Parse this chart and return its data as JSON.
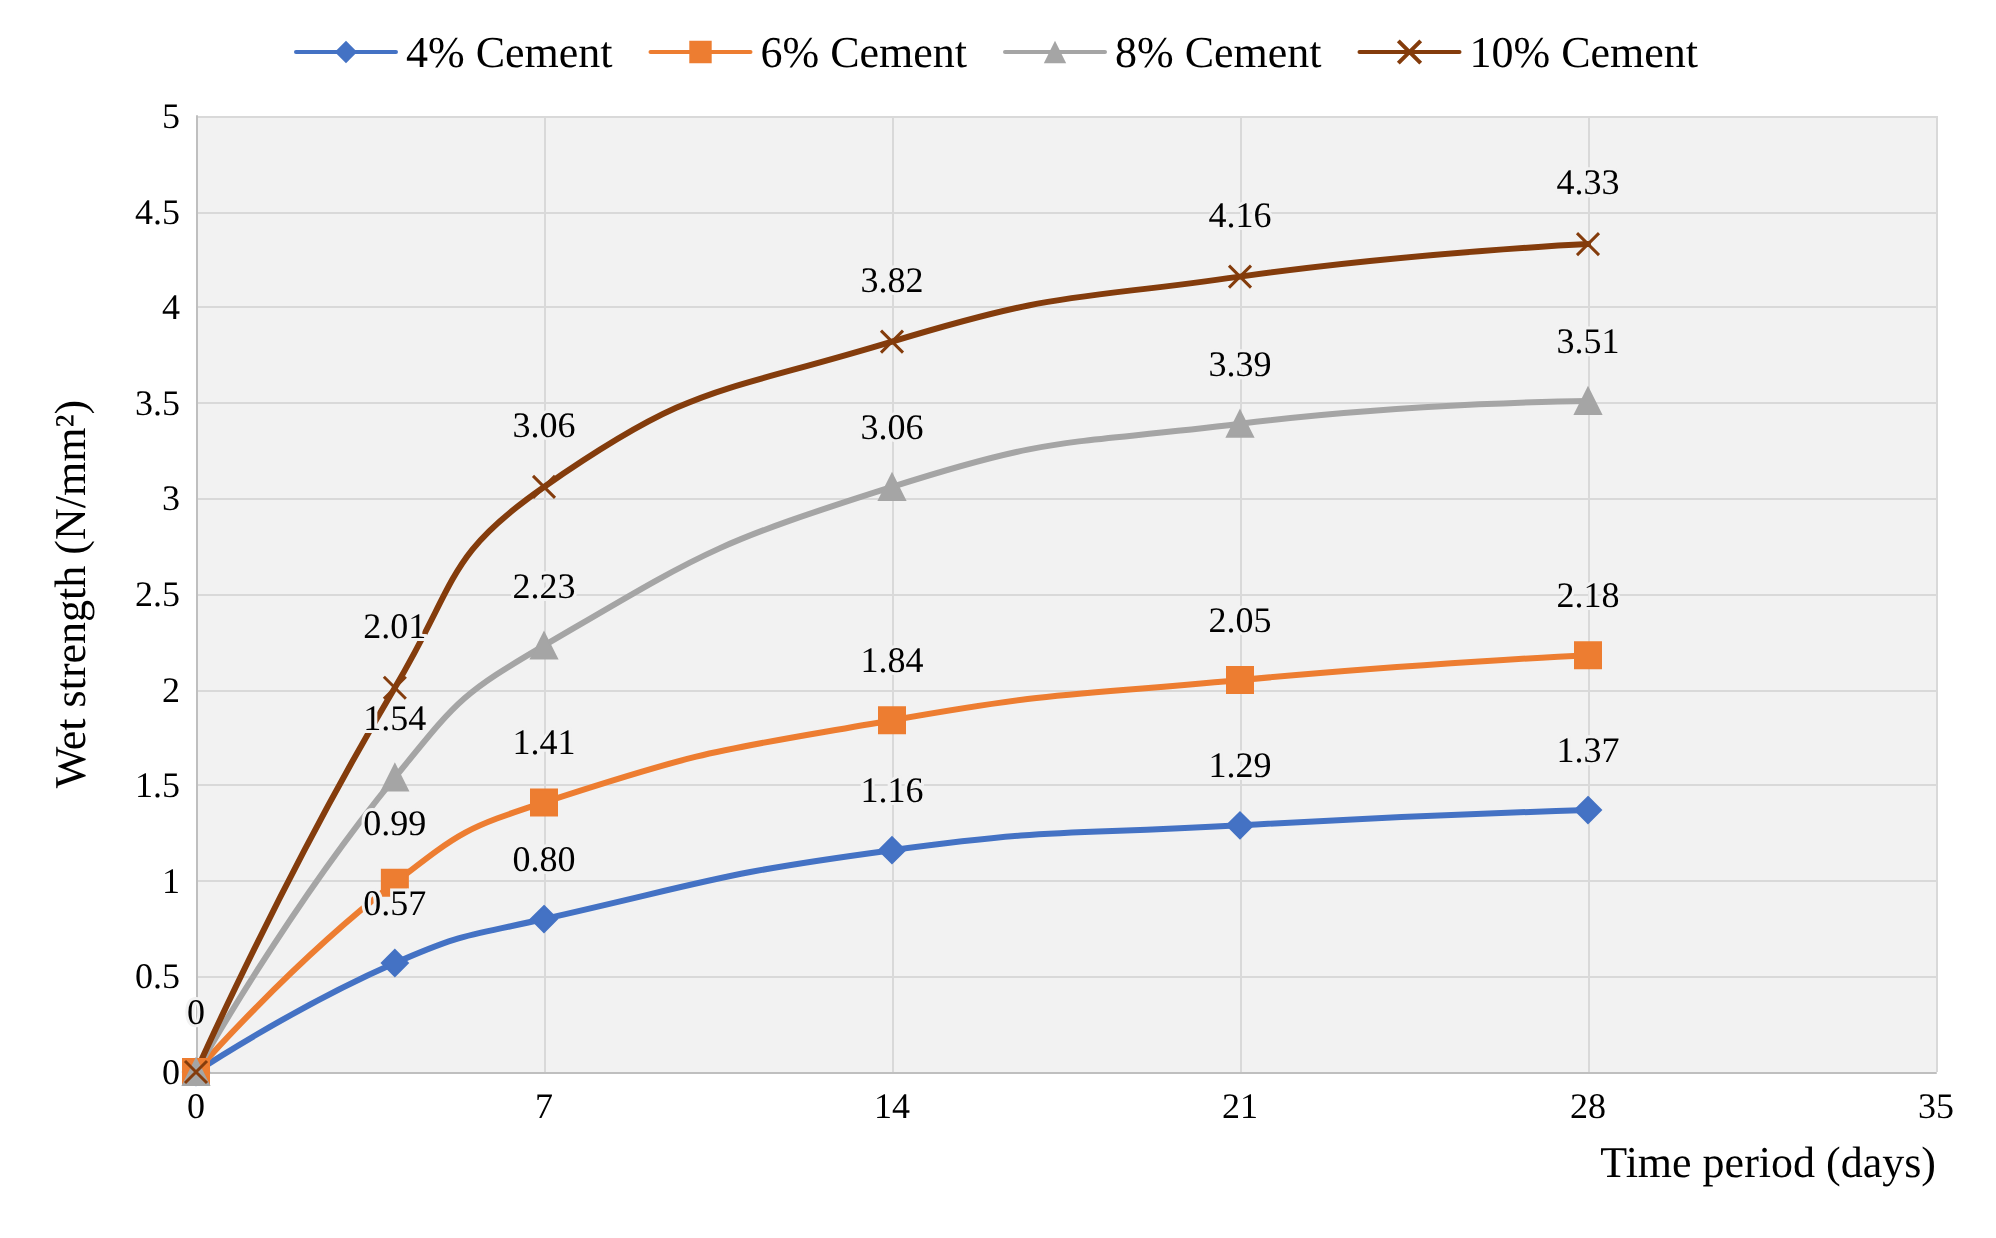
{
  "chart_data": {
    "type": "line",
    "xlabel": "Time period (days)",
    "ylabel": "Wet strength (N/mm²)",
    "x": [
      0,
      4,
      7,
      14,
      21,
      28
    ],
    "xlim": [
      0,
      35
    ],
    "xticks": [
      0,
      7,
      14,
      21,
      28,
      35
    ],
    "ylim": [
      0,
      5
    ],
    "yticks": [
      0,
      0.5,
      1,
      1.5,
      2,
      2.5,
      3,
      3.5,
      4,
      4.5,
      5
    ],
    "grid": true,
    "legend": "top",
    "series": [
      {
        "name": "4% Cement",
        "color": "#4472c4",
        "marker": "diamond",
        "values": [
          0,
          0.57,
          0.8,
          1.16,
          1.29,
          1.37
        ],
        "value_labels": [
          "0",
          "0.57",
          "0.80",
          "1.16",
          "1.29",
          "1.37"
        ]
      },
      {
        "name": "6% Cement",
        "color": "#ed7d31",
        "marker": "square",
        "values": [
          0,
          0.99,
          1.41,
          1.84,
          2.05,
          2.18
        ],
        "value_labels": [
          null,
          "0.99",
          "1.41",
          "1.84",
          "2.05",
          "2.18"
        ]
      },
      {
        "name": "8% Cement",
        "color": "#a5a5a5",
        "marker": "triangle",
        "values": [
          0,
          1.54,
          2.23,
          3.06,
          3.39,
          3.51
        ],
        "value_labels": [
          null,
          "1.54",
          "2.23",
          "3.06",
          "3.39",
          "3.51"
        ]
      },
      {
        "name": "10% Cement",
        "color": "#843c0c",
        "marker": "cross",
        "values": [
          0,
          2.01,
          3.06,
          3.82,
          4.16,
          4.33
        ],
        "value_labels": [
          null,
          "2.01",
          "3.06",
          "3.82",
          "4.16",
          "4.33"
        ]
      }
    ]
  }
}
